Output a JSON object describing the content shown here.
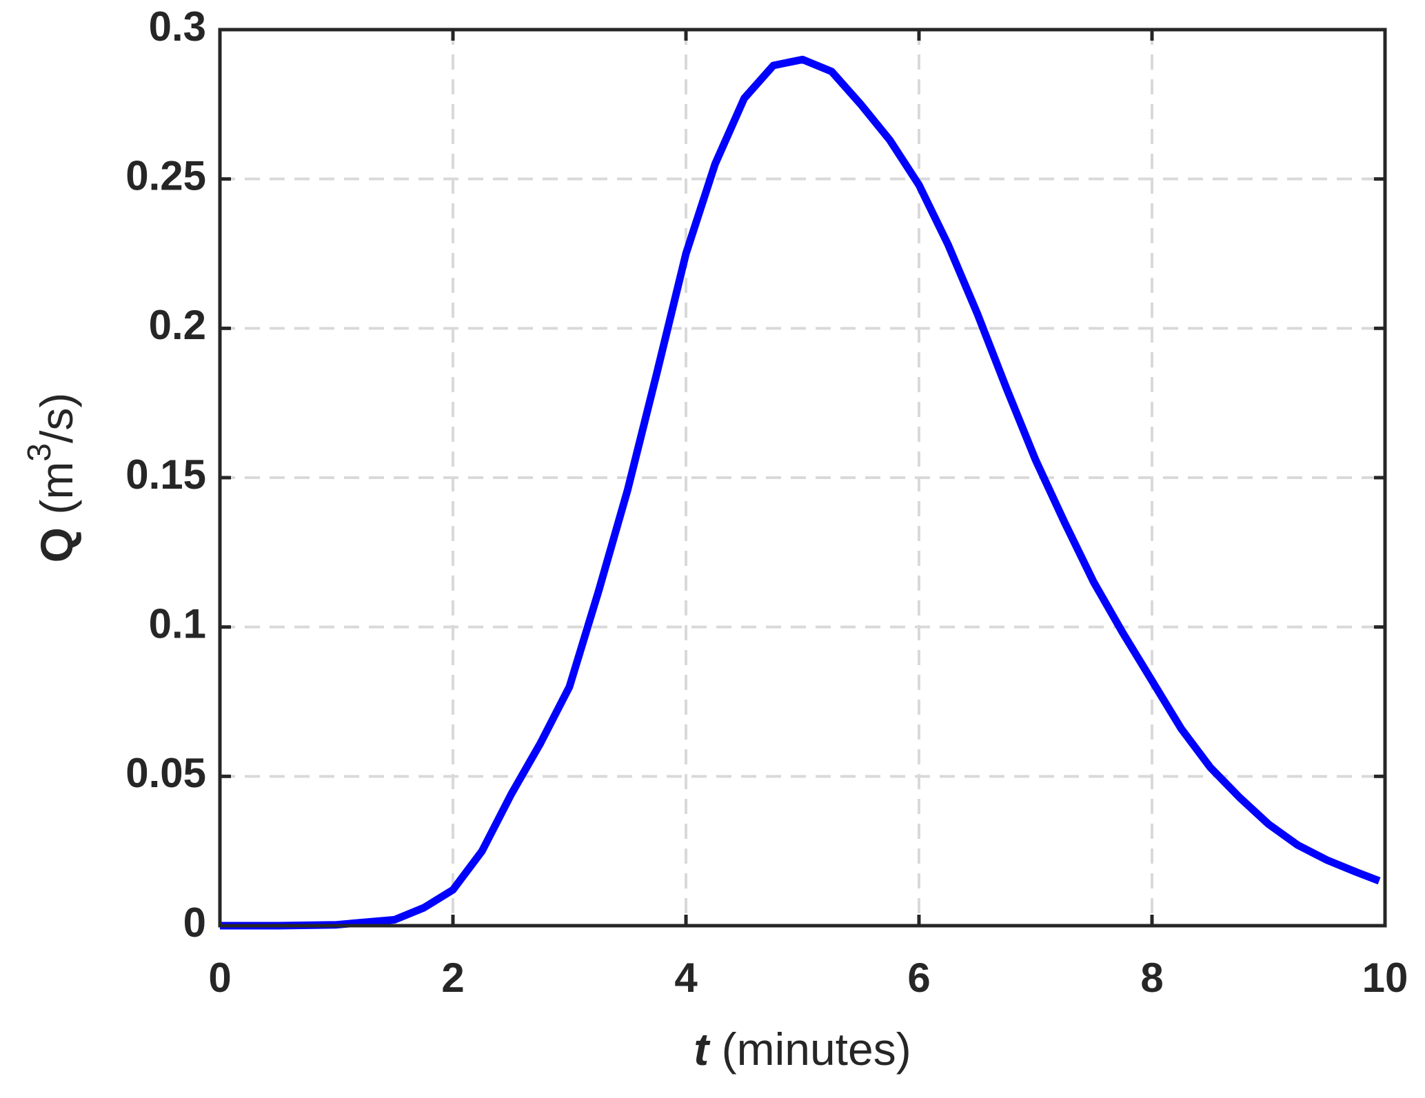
{
  "chart_data": {
    "type": "line",
    "xlabel_parts": [
      "t",
      "(minutes)"
    ],
    "ylabel_parts": [
      "Q",
      "(m",
      "3",
      "/s)"
    ],
    "x": [
      0,
      0.5,
      1,
      1.5,
      1.75,
      2,
      2.25,
      2.5,
      2.75,
      3,
      3.25,
      3.5,
      3.75,
      4,
      4.25,
      4.5,
      4.75,
      5,
      5.25,
      5.5,
      5.75,
      6,
      6.25,
      6.5,
      6.75,
      7,
      7.25,
      7.5,
      7.75,
      8,
      8.25,
      8.5,
      8.75,
      9,
      9.25,
      9.5,
      9.75,
      9.95
    ],
    "values": [
      0,
      0,
      0.0003,
      0.002,
      0.006,
      0.012,
      0.025,
      0.044,
      0.061,
      0.08,
      0.112,
      0.146,
      0.185,
      0.225,
      0.255,
      0.277,
      0.288,
      0.29,
      0.286,
      0.275,
      0.263,
      0.248,
      0.228,
      0.205,
      0.18,
      0.156,
      0.135,
      0.115,
      0.098,
      0.082,
      0.066,
      0.053,
      0.043,
      0.034,
      0.027,
      0.022,
      0.018,
      0.015
    ],
    "color": "#0000ff",
    "xlim": [
      0,
      10
    ],
    "xticks": [
      0,
      2,
      4,
      6,
      8,
      10
    ],
    "ylim": [
      0,
      0.3
    ],
    "yticks": [
      0,
      0.05,
      0.1,
      0.15,
      0.2,
      0.25,
      0.3
    ],
    "grid": true
  }
}
